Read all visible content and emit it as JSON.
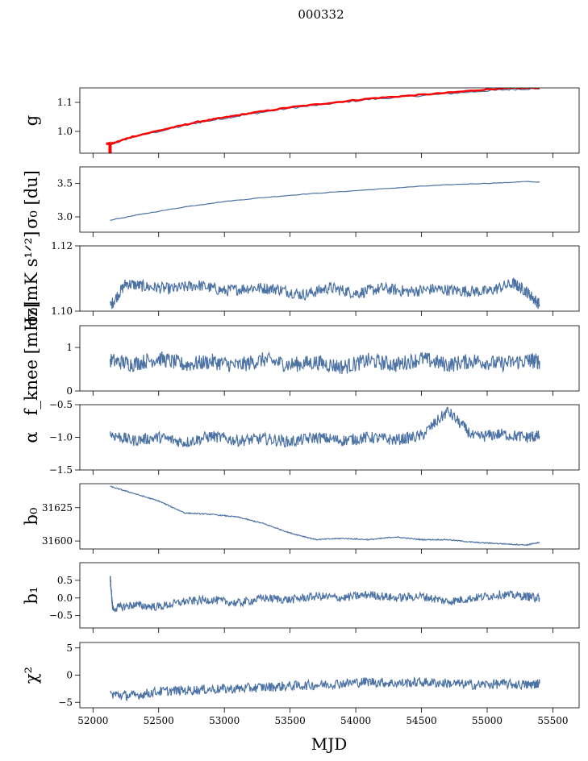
{
  "title": "000332",
  "xlabel": "MJD",
  "colors": {
    "series": "#4c72a4",
    "highlight": "#ff0000",
    "axes": "#000000"
  },
  "chart_data": [
    {
      "type": "line",
      "ylabel": "g",
      "ylim": [
        0.925,
        1.15
      ],
      "yticks": [
        1.0,
        1.1
      ],
      "ytick_labels": [
        "1.0",
        "1.1"
      ],
      "xlim": [
        51900,
        55700
      ],
      "series": [
        {
          "color": "#4c72a4",
          "x": [
            52100,
            52150,
            52300,
            52600,
            52800,
            53000,
            53200,
            53500,
            53800,
            54100,
            54400,
            54700,
            55000,
            55200,
            55400
          ],
          "y": [
            0.955,
            0.957,
            0.98,
            1.01,
            1.03,
            1.045,
            1.06,
            1.08,
            1.095,
            1.11,
            1.12,
            1.13,
            1.14,
            1.145,
            1.147
          ]
        },
        {
          "color": "#ff0000",
          "x": [
            52100,
            52150,
            52300,
            52600,
            52800,
            53000,
            53200,
            53500,
            53800,
            54100,
            54400,
            54700,
            55000,
            55200,
            55400
          ],
          "y": [
            0.957,
            0.959,
            0.982,
            1.013,
            1.033,
            1.048,
            1.063,
            1.083,
            1.098,
            1.113,
            1.123,
            1.133,
            1.145,
            1.149,
            1.15
          ]
        }
      ]
    },
    {
      "type": "line",
      "ylabel": "σ₀ [du]",
      "ylim": [
        2.77,
        3.75
      ],
      "yticks": [
        3.0,
        3.5
      ],
      "ytick_labels": [
        "3.0",
        "3.5"
      ],
      "xlim": [
        51900,
        55700
      ],
      "series": [
        {
          "color": "#4c72a4",
          "x": [
            52130,
            52400,
            52700,
            53000,
            53300,
            53600,
            53900,
            54200,
            54500,
            54800,
            55100,
            55300,
            55400
          ],
          "y": [
            2.95,
            3.05,
            3.15,
            3.23,
            3.29,
            3.34,
            3.38,
            3.42,
            3.46,
            3.49,
            3.51,
            3.53,
            3.52
          ]
        }
      ]
    },
    {
      "type": "line",
      "ylabel": "σ₀[mK s¹ᐟ²]",
      "ylim": [
        1.1,
        1.12
      ],
      "yticks": [
        1.1,
        1.12
      ],
      "ytick_labels": [
        "1.10",
        "1.12"
      ],
      "xlim": [
        51900,
        55700
      ],
      "series": [
        {
          "color": "#4c72a4",
          "x": [
            52130,
            52250,
            52400,
            52600,
            52800,
            53000,
            53200,
            53400,
            53600,
            53800,
            54000,
            54200,
            54400,
            54600,
            54800,
            55000,
            55200,
            55300,
            55400
          ],
          "y": [
            1.1015,
            1.1085,
            1.1075,
            1.1068,
            1.108,
            1.1062,
            1.1072,
            1.1068,
            1.105,
            1.1072,
            1.1055,
            1.107,
            1.106,
            1.1068,
            1.1062,
            1.106,
            1.1085,
            1.106,
            1.102
          ]
        }
      ]
    },
    {
      "type": "line",
      "ylabel": "f_knee [mHz]",
      "ylim": [
        0,
        1.5
      ],
      "yticks": [
        0,
        1
      ],
      "ytick_labels": [
        "0",
        "1"
      ],
      "xlim": [
        51900,
        55700
      ],
      "series": [
        {
          "color": "#4c72a4",
          "x": [
            52130,
            52300,
            52500,
            52700,
            52900,
            53100,
            53300,
            53500,
            53700,
            53900,
            54100,
            54300,
            54500,
            54700,
            54900,
            55100,
            55300,
            55400
          ],
          "y": [
            0.7,
            0.62,
            0.75,
            0.6,
            0.68,
            0.58,
            0.72,
            0.6,
            0.66,
            0.55,
            0.7,
            0.6,
            0.74,
            0.6,
            0.7,
            0.62,
            0.7,
            0.68
          ]
        }
      ]
    },
    {
      "type": "line",
      "ylabel": "α",
      "ylim": [
        -1.5,
        -0.5
      ],
      "yticks": [
        -1.5,
        -1.0,
        -0.5
      ],
      "ytick_labels": [
        "−1.5",
        "−1.0",
        "−0.5"
      ],
      "xlim": [
        51900,
        55700
      ],
      "series": [
        {
          "color": "#4c72a4",
          "x": [
            52130,
            52300,
            52500,
            52700,
            52900,
            53100,
            53300,
            53500,
            53700,
            53900,
            54100,
            54300,
            54500,
            54700,
            54900,
            55100,
            55300,
            55400
          ],
          "y": [
            -0.95,
            -1.05,
            -1.0,
            -1.08,
            -0.98,
            -1.05,
            -1.02,
            -1.07,
            -1.0,
            -1.05,
            -1.0,
            -1.04,
            -0.98,
            -0.6,
            -1.0,
            -0.95,
            -1.0,
            -0.98
          ]
        }
      ]
    },
    {
      "type": "line",
      "ylabel": "b₀",
      "ylim": [
        31594,
        31643
      ],
      "yticks": [
        31600,
        31625
      ],
      "ytick_labels": [
        "31600",
        "31625"
      ],
      "xlim": [
        51900,
        55700
      ],
      "series": [
        {
          "color": "#4c72a4",
          "x": [
            52130,
            52300,
            52500,
            52700,
            52900,
            53100,
            53300,
            53500,
            53700,
            53900,
            54100,
            54300,
            54500,
            54700,
            54900,
            55100,
            55300,
            55400
          ],
          "y": [
            31641,
            31636,
            31630,
            31621,
            31620,
            31618,
            31613,
            31606,
            31601,
            31602,
            31601,
            31603,
            31601,
            31601,
            31599,
            31598,
            31597,
            31599
          ]
        }
      ]
    },
    {
      "type": "line",
      "ylabel": "b₁",
      "ylim": [
        -0.85,
        1.0
      ],
      "yticks": [
        -0.5,
        0.0,
        0.5
      ],
      "ytick_labels": [
        "−0.5",
        "0.0",
        "0.5"
      ],
      "xlim": [
        51900,
        55700
      ],
      "series": [
        {
          "color": "#4c72a4",
          "x": [
            52130,
            52150,
            52300,
            52500,
            52700,
            52900,
            53100,
            53300,
            53500,
            53700,
            53900,
            54100,
            54300,
            54500,
            54700,
            54900,
            55100,
            55300,
            55400
          ],
          "y": [
            0.6,
            -0.3,
            -0.2,
            -0.25,
            -0.1,
            -0.05,
            -0.15,
            0.0,
            -0.05,
            0.05,
            0.0,
            0.1,
            0.0,
            0.05,
            -0.1,
            0.0,
            0.1,
            0.05,
            0.0
          ]
        }
      ]
    },
    {
      "type": "line",
      "ylabel": "χ²",
      "ylim": [
        -6,
        6
      ],
      "yticks": [
        -5,
        0,
        5
      ],
      "ytick_labels": [
        "−5",
        "0",
        "5"
      ],
      "xticks": [
        52000,
        52500,
        53000,
        53500,
        54000,
        54500,
        55000,
        55500
      ],
      "xtick_labels": [
        "52000",
        "52500",
        "53000",
        "53500",
        "54000",
        "54500",
        "55000",
        "55500"
      ],
      "xlim": [
        51900,
        55700
      ],
      "series": [
        {
          "color": "#4c72a4",
          "x": [
            52130,
            52300,
            52500,
            52700,
            52900,
            53100,
            53300,
            53500,
            53700,
            53900,
            54100,
            54300,
            54500,
            54700,
            54900,
            55100,
            55300,
            55400
          ],
          "y": [
            -3.5,
            -3.8,
            -3.0,
            -2.8,
            -2.6,
            -2.5,
            -2.2,
            -2.0,
            -1.8,
            -1.5,
            -1.2,
            -1.5,
            -1.3,
            -1.5,
            -1.8,
            -1.6,
            -1.8,
            -1.5
          ]
        }
      ]
    }
  ]
}
